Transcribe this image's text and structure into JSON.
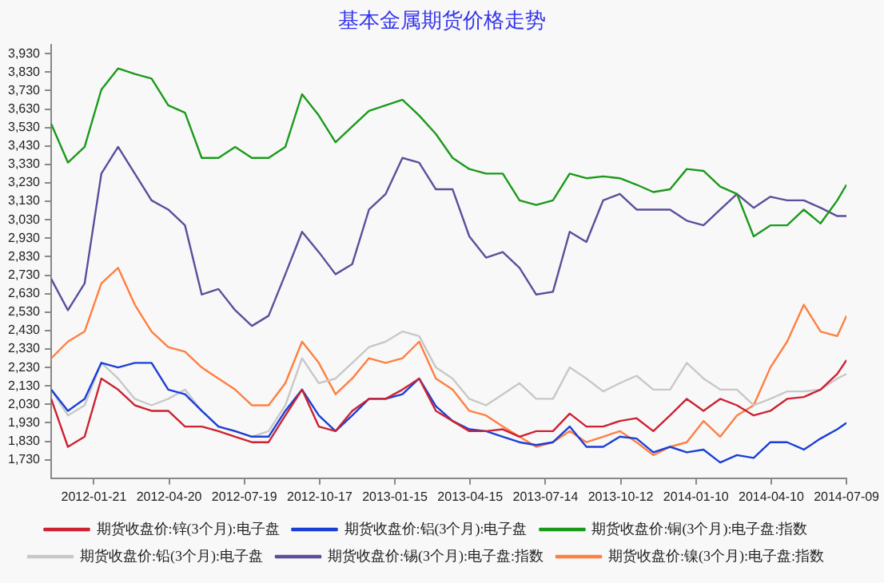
{
  "chart_data": {
    "type": "line",
    "title": "基本金属期货价格走势",
    "legend": "bottom",
    "grid": false,
    "marker": "none",
    "x": [
      "2011-12-01",
      "2011-12-21",
      "2012-01-10",
      "2012-01-30",
      "2012-02-19",
      "2012-03-10",
      "2012-03-30",
      "2012-04-19",
      "2012-05-09",
      "2012-05-29",
      "2012-06-18",
      "2012-07-08",
      "2012-07-28",
      "2012-08-17",
      "2012-09-06",
      "2012-09-26",
      "2012-10-16",
      "2012-11-05",
      "2012-11-25",
      "2012-12-15",
      "2013-01-04",
      "2013-01-24",
      "2013-02-13",
      "2013-03-05",
      "2013-03-25",
      "2013-04-14",
      "2013-05-04",
      "2013-05-24",
      "2013-06-13",
      "2013-07-03",
      "2013-07-23",
      "2013-08-12",
      "2013-09-01",
      "2013-09-21",
      "2013-10-11",
      "2013-10-31",
      "2013-11-20",
      "2013-12-10",
      "2013-12-30",
      "2014-01-19",
      "2014-02-08",
      "2014-02-28",
      "2014-03-20",
      "2014-04-09",
      "2014-04-29",
      "2014-05-19",
      "2014-06-08",
      "2014-06-28",
      "2014-07-09"
    ],
    "xlim": [
      "2011-12-01",
      "2014-07-09"
    ],
    "xticks": [
      "2012-01-21",
      "2012-04-20",
      "2012-07-19",
      "2012-10-17",
      "2013-01-15",
      "2013-04-15",
      "2013-07-14",
      "2013-10-12",
      "2014-01-10",
      "2014-04-10",
      "2014-07-09"
    ],
    "ylim": [
      1630,
      3980
    ],
    "yticks": [
      {
        "value": 1730,
        "label": "1,730"
      },
      {
        "value": 1830,
        "label": "1,830"
      },
      {
        "value": 1930,
        "label": "1,930"
      },
      {
        "value": 2030,
        "label": "2,030"
      },
      {
        "value": 2130,
        "label": "2,130"
      },
      {
        "value": 2230,
        "label": "2,230"
      },
      {
        "value": 2330,
        "label": "2,330"
      },
      {
        "value": 2430,
        "label": "2,430"
      },
      {
        "value": 2530,
        "label": "2,530"
      },
      {
        "value": 2630,
        "label": "2,630"
      },
      {
        "value": 2730,
        "label": "2,730"
      },
      {
        "value": 2830,
        "label": "2,830"
      },
      {
        "value": 2930,
        "label": "2,930"
      },
      {
        "value": 3030,
        "label": "3,030"
      },
      {
        "value": 3130,
        "label": "3,130"
      },
      {
        "value": 3230,
        "label": "3,230"
      },
      {
        "value": 3330,
        "label": "3,330"
      },
      {
        "value": 3430,
        "label": "3,430"
      },
      {
        "value": 3530,
        "label": "3,530"
      },
      {
        "value": 3630,
        "label": "3,630"
      },
      {
        "value": 3730,
        "label": "3,730"
      },
      {
        "value": 3830,
        "label": "3,830"
      },
      {
        "value": 3930,
        "label": "3,930"
      }
    ],
    "series": [
      {
        "name": "期货收盘价:锌(3个月):电子盘",
        "color": "#cc2233",
        "values": [
          2060,
          1800,
          1855,
          2170,
          2110,
          2025,
          1995,
          1995,
          1910,
          1910,
          1885,
          1855,
          1825,
          1825,
          1970,
          2110,
          1910,
          1885,
          1995,
          2060,
          2060,
          2110,
          2170,
          1995,
          1940,
          1885,
          1885,
          1895,
          1855,
          1885,
          1885,
          1980,
          1910,
          1910,
          1940,
          1955,
          1885,
          1970,
          2060,
          1995,
          2060,
          2025,
          1970,
          1995,
          2060,
          2070,
          2110,
          2195,
          2270
        ]
      },
      {
        "name": "期货收盘价:铝(3个月):电子盘",
        "color": "#1a3fd6",
        "values": [
          2110,
          1995,
          2060,
          2255,
          2230,
          2255,
          2255,
          2110,
          2085,
          1995,
          1910,
          1885,
          1855,
          1855,
          1995,
          2110,
          1970,
          1885,
          1970,
          2060,
          2060,
          2085,
          2170,
          2020,
          1940,
          1895,
          1885,
          1855,
          1825,
          1810,
          1825,
          1910,
          1800,
          1800,
          1855,
          1845,
          1770,
          1800,
          1770,
          1785,
          1715,
          1755,
          1740,
          1825,
          1825,
          1785,
          1845,
          1895,
          1930
        ]
      },
      {
        "name": "期货收盘价:铜(3个月):电子盘:指数",
        "color": "#1a9a1a",
        "values": [
          3550,
          3340,
          3425,
          3735,
          3850,
          3820,
          3795,
          3650,
          3610,
          3365,
          3365,
          3425,
          3365,
          3365,
          3425,
          3710,
          3595,
          3450,
          3535,
          3620,
          3650,
          3680,
          3595,
          3495,
          3365,
          3305,
          3280,
          3280,
          3135,
          3110,
          3135,
          3280,
          3255,
          3265,
          3255,
          3220,
          3180,
          3195,
          3305,
          3295,
          3210,
          3170,
          2940,
          3000,
          3000,
          3085,
          3010,
          3135,
          3220
        ]
      },
      {
        "name": "期货收盘价:铅(3个月):电子盘",
        "color": "#c8c8c8",
        "values": [
          2110,
          1970,
          2025,
          2255,
          2170,
          2060,
          2025,
          2060,
          2110,
          1995,
          1910,
          1885,
          1855,
          1885,
          2025,
          2280,
          2145,
          2170,
          2255,
          2340,
          2370,
          2425,
          2400,
          2230,
          2170,
          2060,
          2025,
          2085,
          2145,
          2060,
          2060,
          2230,
          2170,
          2100,
          2145,
          2185,
          2110,
          2110,
          2255,
          2170,
          2110,
          2110,
          2025,
          2060,
          2100,
          2100,
          2110,
          2170,
          2195
        ]
      },
      {
        "name": "期货收盘价:锡(3个月):电子盘:指数",
        "color": "#5b4e9a",
        "values": [
          2710,
          2540,
          2685,
          3280,
          3425,
          3280,
          3135,
          3085,
          3000,
          2625,
          2655,
          2540,
          2455,
          2510,
          2735,
          2965,
          2855,
          2735,
          2790,
          3085,
          3170,
          3365,
          3340,
          3195,
          3195,
          2940,
          2825,
          2855,
          2770,
          2625,
          2640,
          2965,
          2910,
          3135,
          3170,
          3085,
          3085,
          3085,
          3025,
          3000,
          3085,
          3170,
          3095,
          3155,
          3135,
          3135,
          3095,
          3050,
          3050
        ]
      },
      {
        "name": "期货收盘价:镍(3个月):电子盘:指数",
        "color": "#ff7f40",
        "values": [
          2280,
          2370,
          2425,
          2685,
          2770,
          2570,
          2425,
          2340,
          2315,
          2230,
          2170,
          2110,
          2025,
          2025,
          2145,
          2370,
          2255,
          2085,
          2170,
          2280,
          2255,
          2280,
          2370,
          2170,
          2110,
          1995,
          1970,
          1910,
          1855,
          1800,
          1825,
          1885,
          1825,
          1855,
          1885,
          1825,
          1755,
          1800,
          1825,
          1940,
          1855,
          1970,
          2025,
          2230,
          2370,
          2570,
          2425,
          2400,
          2510
        ]
      }
    ]
  }
}
